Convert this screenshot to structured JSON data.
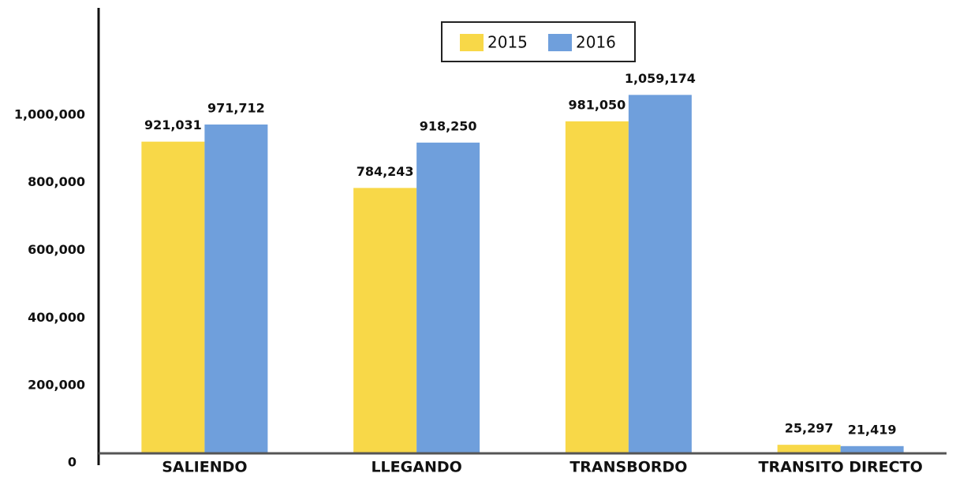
{
  "chart_data": {
    "type": "bar",
    "categories": [
      "SALIENDO",
      "LLEGANDO",
      "TRANSBORDO",
      "TRANSITO DIRECTO"
    ],
    "series": [
      {
        "name": "2015",
        "color": "#f8d848",
        "values": [
          921031,
          784243,
          981050,
          25297
        ],
        "value_labels": [
          "921,031",
          "784,243",
          "981,050",
          "25,297"
        ]
      },
      {
        "name": "2016",
        "color": "#6f9fdc",
        "values": [
          971712,
          918250,
          1059174,
          21419
        ],
        "value_labels": [
          "971,712",
          "918,250",
          "1,059,174",
          "21,419"
        ]
      }
    ],
    "ylim": [
      0,
      1300000
    ],
    "yticks": [
      0,
      {
        "value": 200000,
        "label": "200,000"
      },
      {
        "value": 400000,
        "label": "400,000"
      },
      {
        "value": 600000,
        "label": "600,000"
      },
      {
        "value": 800000,
        "label": "800,000"
      },
      {
        "value": 1000000,
        "label": "1,000,000"
      }
    ],
    "grid": false,
    "legend": "top"
  }
}
